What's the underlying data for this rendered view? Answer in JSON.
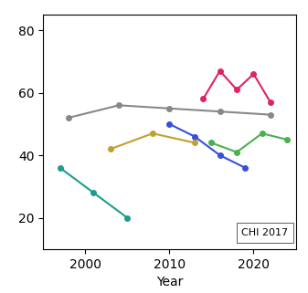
{
  "chart_data": {
    "type": "line",
    "x_label": "Year",
    "xlim": [
      1995,
      2025
    ],
    "xticks": [
      2000,
      2010,
      2020
    ],
    "ylim": [
      10,
      85
    ],
    "yticks": [
      20,
      40,
      60,
      80
    ],
    "grid": false,
    "annotations": [
      "CHI 2017"
    ],
    "series": [
      {
        "color": "#e0245e",
        "marker": "o",
        "x": [
          2014,
          2016,
          2018,
          2020,
          2022
        ],
        "values": [
          58,
          67,
          61,
          66,
          57
        ]
      },
      {
        "color": "#888888",
        "marker": "o",
        "x": [
          1998,
          2004,
          2010,
          2016,
          2022
        ],
        "values": [
          52,
          56,
          55,
          54,
          53
        ]
      },
      {
        "color": "#1a9e8f",
        "marker": "o",
        "x": [
          1997,
          2001,
          2005
        ],
        "values": [
          36,
          28,
          20
        ]
      },
      {
        "color": "#3a4fd8",
        "marker": "o",
        "x": [
          2010,
          2013,
          2016,
          2019
        ],
        "values": [
          50,
          46,
          40,
          36
        ]
      },
      {
        "color": "#4caf50",
        "marker": "o",
        "x": [
          2015,
          2018,
          2021,
          2024
        ],
        "values": [
          44,
          41,
          47,
          45
        ]
      },
      {
        "color": "#c0a030",
        "marker": "o",
        "x": [
          2003,
          2008,
          2013
        ],
        "values": [
          42,
          47,
          44
        ]
      }
    ]
  }
}
